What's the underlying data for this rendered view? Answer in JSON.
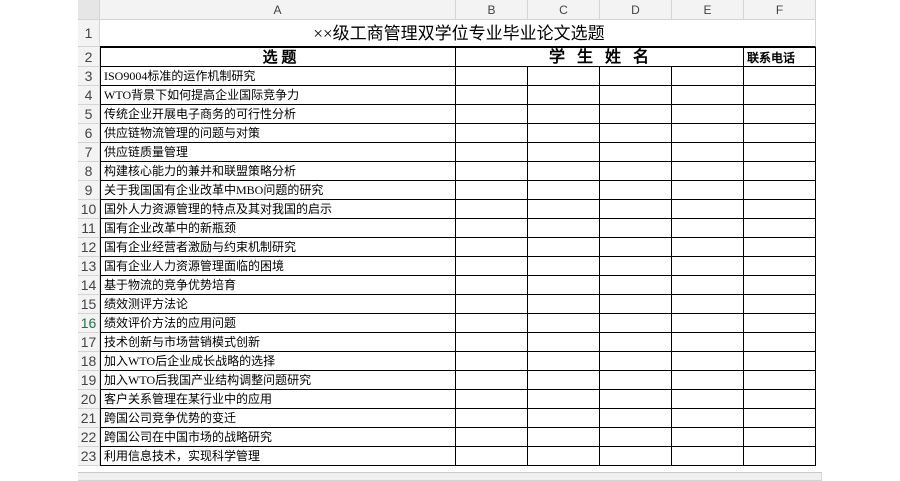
{
  "columns": [
    "A",
    "B",
    "C",
    "D",
    "E",
    "F"
  ],
  "row_numbers": [
    "1",
    "2",
    "3",
    "4",
    "5",
    "6",
    "7",
    "8",
    "9",
    "10",
    "11",
    "12",
    "13",
    "14",
    "15",
    "16",
    "17",
    "18",
    "19",
    "20",
    "21",
    "22",
    "23"
  ],
  "title": "××级工商管理双学位专业毕业论文选题",
  "header": {
    "topic": "选 题",
    "students": "学 生 姓 名",
    "phone": "联系电话"
  },
  "topics": [
    "ISO9004标准的运作机制研究",
    "WTO背景下如何提高企业国际竞争力",
    "传统企业开展电子商务的可行性分析",
    "供应链物流管理的问题与对策",
    "供应链质量管理",
    "构建核心能力的兼并和联盟策略分析",
    "关于我国国有企业改革中MBO问题的研究",
    "国外人力资源管理的特点及其对我国的启示",
    "国有企业改革中的新瓶颈",
    "国有企业经营者激励与约束机制研究",
    "国有企业人力资源管理面临的困境",
    "基于物流的竞争优势培育",
    "绩效测评方法论",
    "绩效评价方法的应用问题",
    "技术创新与市场营销模式创新",
    "加入WTO后企业成长战略的选择",
    "加入WTO后我国产业结构调整问题研究",
    "客户关系管理在某行业中的应用",
    "跨国公司竞争优势的变迁",
    "跨国公司在中国市场的战略研究",
    "利用信息技术，实现科学管理"
  ]
}
